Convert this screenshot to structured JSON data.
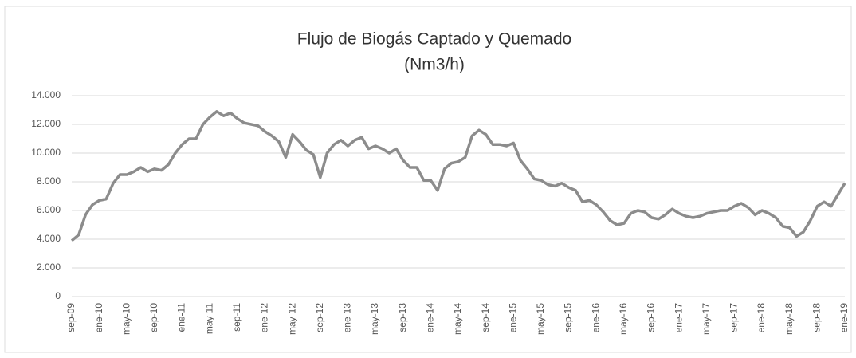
{
  "chart_data": {
    "type": "line",
    "title": "Flujo de Biogás Captado y Quemado",
    "subtitle": "(Nm3/h)",
    "categories": [
      "sep-09",
      null,
      null,
      null,
      "ene-10",
      null,
      null,
      null,
      "may-10",
      null,
      null,
      null,
      "sep-10",
      null,
      null,
      null,
      "ene-11",
      null,
      null,
      null,
      "may-11",
      null,
      null,
      null,
      "sep-11",
      null,
      null,
      null,
      "ene-12",
      null,
      null,
      null,
      "may-12",
      null,
      null,
      null,
      "sep-12",
      null,
      null,
      null,
      "ene-13",
      null,
      null,
      null,
      "may-13",
      null,
      null,
      null,
      "sep-13",
      null,
      null,
      null,
      "ene-14",
      null,
      null,
      null,
      "may-14",
      null,
      null,
      null,
      "sep-14",
      null,
      null,
      null,
      "ene-15",
      null,
      null,
      null,
      "may-15",
      null,
      null,
      null,
      "sep-15",
      null,
      null,
      null,
      "ene-16",
      null,
      null,
      null,
      "may-16",
      null,
      null,
      null,
      "sep-16",
      null,
      null,
      null,
      "ene-17",
      null,
      null,
      null,
      "may-17",
      null,
      null,
      null,
      "sep-17",
      null,
      null,
      null,
      "ene-18",
      null,
      null,
      null,
      "may-18",
      null,
      null,
      null,
      "sep-18",
      null,
      null,
      null,
      "ene-19"
    ],
    "values": [
      3900,
      4300,
      5700,
      6400,
      6700,
      6800,
      7900,
      8500,
      8500,
      8700,
      9000,
      8700,
      8900,
      8800,
      9200,
      10000,
      10600,
      11000,
      11000,
      12000,
      12500,
      12900,
      12600,
      12800,
      12400,
      12100,
      12000,
      11900,
      11500,
      11200,
      10800,
      9700,
      11300,
      10800,
      10200,
      9900,
      8300,
      10000,
      10600,
      10900,
      10500,
      10900,
      11100,
      10300,
      10500,
      10300,
      10000,
      10300,
      9500,
      9000,
      9000,
      8100,
      8100,
      7400,
      8900,
      9300,
      9400,
      9700,
      11200,
      11600,
      11300,
      10600,
      10600,
      10500,
      10700,
      9500,
      8900,
      8200,
      8100,
      7800,
      7700,
      7900,
      7600,
      7400,
      6600,
      6700,
      6400,
      5900,
      5300,
      5000,
      5100,
      5800,
      6000,
      5900,
      5500,
      5400,
      5700,
      6100,
      5800,
      5600,
      5500,
      5600,
      5800,
      5900,
      6000,
      6000,
      6300,
      6500,
      6200,
      5700,
      6000,
      5800,
      5500,
      4900,
      4800,
      4200,
      4500,
      5300,
      6300,
      6600,
      6300,
      7100,
      7900
    ],
    "color": "#8c8c8c",
    "ylim": [
      0,
      14000
    ],
    "yticks": [
      0,
      {
        "value": 2000,
        "label": "2.000"
      },
      {
        "value": 4000,
        "label": "4.000"
      },
      {
        "value": 6000,
        "label": "6.000"
      },
      {
        "value": 8000,
        "label": "8.000"
      },
      {
        "value": 10000,
        "label": "10.000"
      },
      {
        "value": 12000,
        "label": "12.000"
      },
      {
        "value": 14000,
        "label": "14.000"
      }
    ],
    "grid": true
  }
}
